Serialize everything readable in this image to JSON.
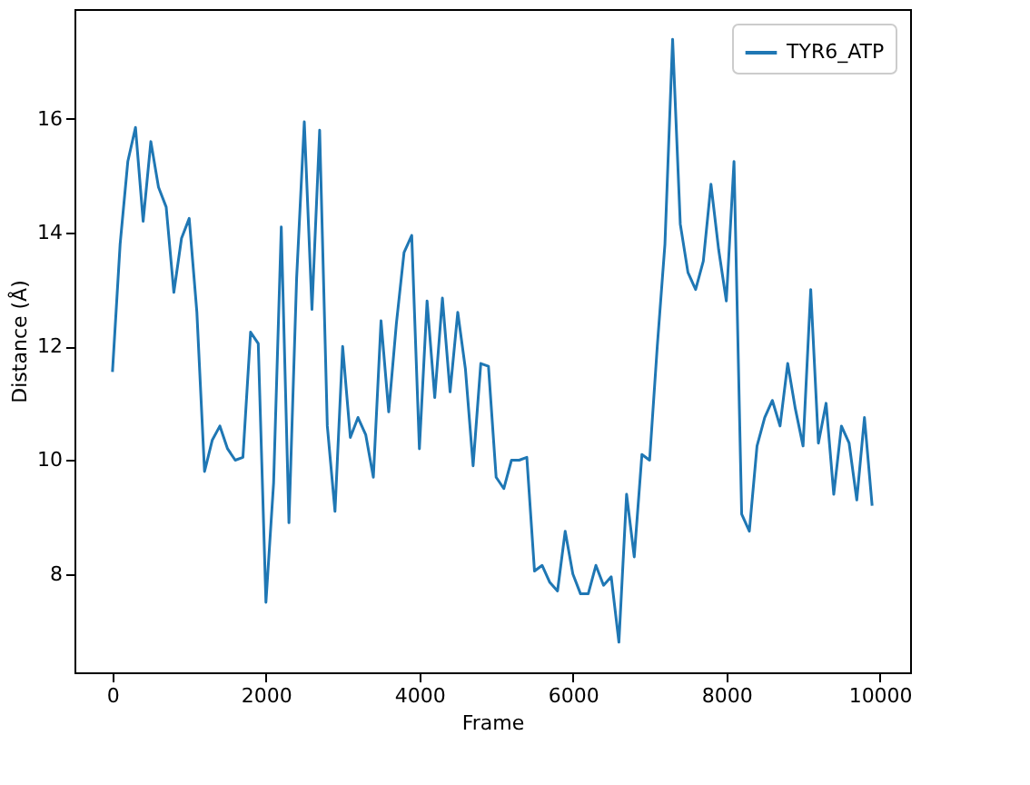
{
  "chart_data": {
    "type": "line",
    "xlabel": "Frame",
    "ylabel": "Distance (Å)",
    "x": [
      0,
      100,
      200,
      300,
      400,
      500,
      600,
      700,
      800,
      900,
      1000,
      1100,
      1200,
      1300,
      1400,
      1500,
      1600,
      1700,
      1800,
      1900,
      2000,
      2100,
      2200,
      2300,
      2400,
      2500,
      2600,
      2700,
      2800,
      2900,
      3000,
      3100,
      3200,
      3300,
      3400,
      3500,
      3600,
      3700,
      3800,
      3900,
      4000,
      4100,
      4200,
      4300,
      4400,
      4500,
      4600,
      4700,
      4800,
      4900,
      5000,
      5100,
      5200,
      5300,
      5400,
      5500,
      5600,
      5700,
      5800,
      5900,
      6000,
      6100,
      6200,
      6300,
      6400,
      6500,
      6600,
      6700,
      6800,
      6900,
      7000,
      7100,
      7200,
      7300,
      7400,
      7500,
      7600,
      7700,
      7800,
      7900,
      8000,
      8100,
      8200,
      8300,
      8400,
      8500,
      8600,
      8700,
      8800,
      8900,
      9000,
      9100,
      9200,
      9300,
      9400,
      9500,
      9600,
      9700,
      9800,
      9900
    ],
    "series": [
      {
        "name": "TYR6_ATP",
        "color": "#1f77b4",
        "values": [
          11.55,
          13.8,
          15.25,
          15.85,
          14.2,
          15.6,
          14.8,
          14.45,
          12.95,
          13.9,
          14.25,
          12.6,
          9.8,
          10.35,
          10.6,
          10.2,
          10.0,
          10.05,
          12.25,
          12.05,
          7.5,
          9.6,
          14.1,
          8.9,
          13.2,
          15.95,
          12.65,
          15.8,
          10.6,
          9.1,
          12.0,
          10.4,
          10.75,
          10.45,
          9.7,
          12.45,
          10.85,
          12.4,
          13.65,
          13.95,
          10.2,
          12.8,
          11.1,
          12.85,
          11.2,
          12.6,
          11.6,
          9.9,
          11.7,
          11.65,
          9.7,
          9.5,
          10.0,
          10.0,
          10.05,
          8.05,
          8.15,
          7.85,
          7.7,
          8.75,
          8.0,
          7.65,
          7.65,
          8.15,
          7.8,
          7.95,
          6.8,
          9.4,
          8.3,
          10.1,
          10.0,
          12.0,
          13.8,
          17.4,
          14.15,
          13.3,
          13.0,
          13.5,
          14.85,
          13.7,
          12.8,
          15.25,
          9.05,
          8.75,
          10.25,
          10.75,
          11.05,
          10.6,
          11.7,
          10.9,
          10.25,
          13.0,
          10.3,
          11.0,
          9.4,
          10.6,
          10.3,
          9.3,
          10.75,
          9.2
        ]
      }
    ],
    "xlim": [
      -495,
      10395
    ],
    "ylim": [
      6.27,
      17.93
    ],
    "xticks": [
      0,
      2000,
      4000,
      6000,
      8000,
      10000
    ],
    "yticks": [
      8,
      10,
      12,
      14,
      16
    ],
    "grid": false,
    "legend": "top right",
    "marker": "none",
    "line_style": "solid"
  }
}
